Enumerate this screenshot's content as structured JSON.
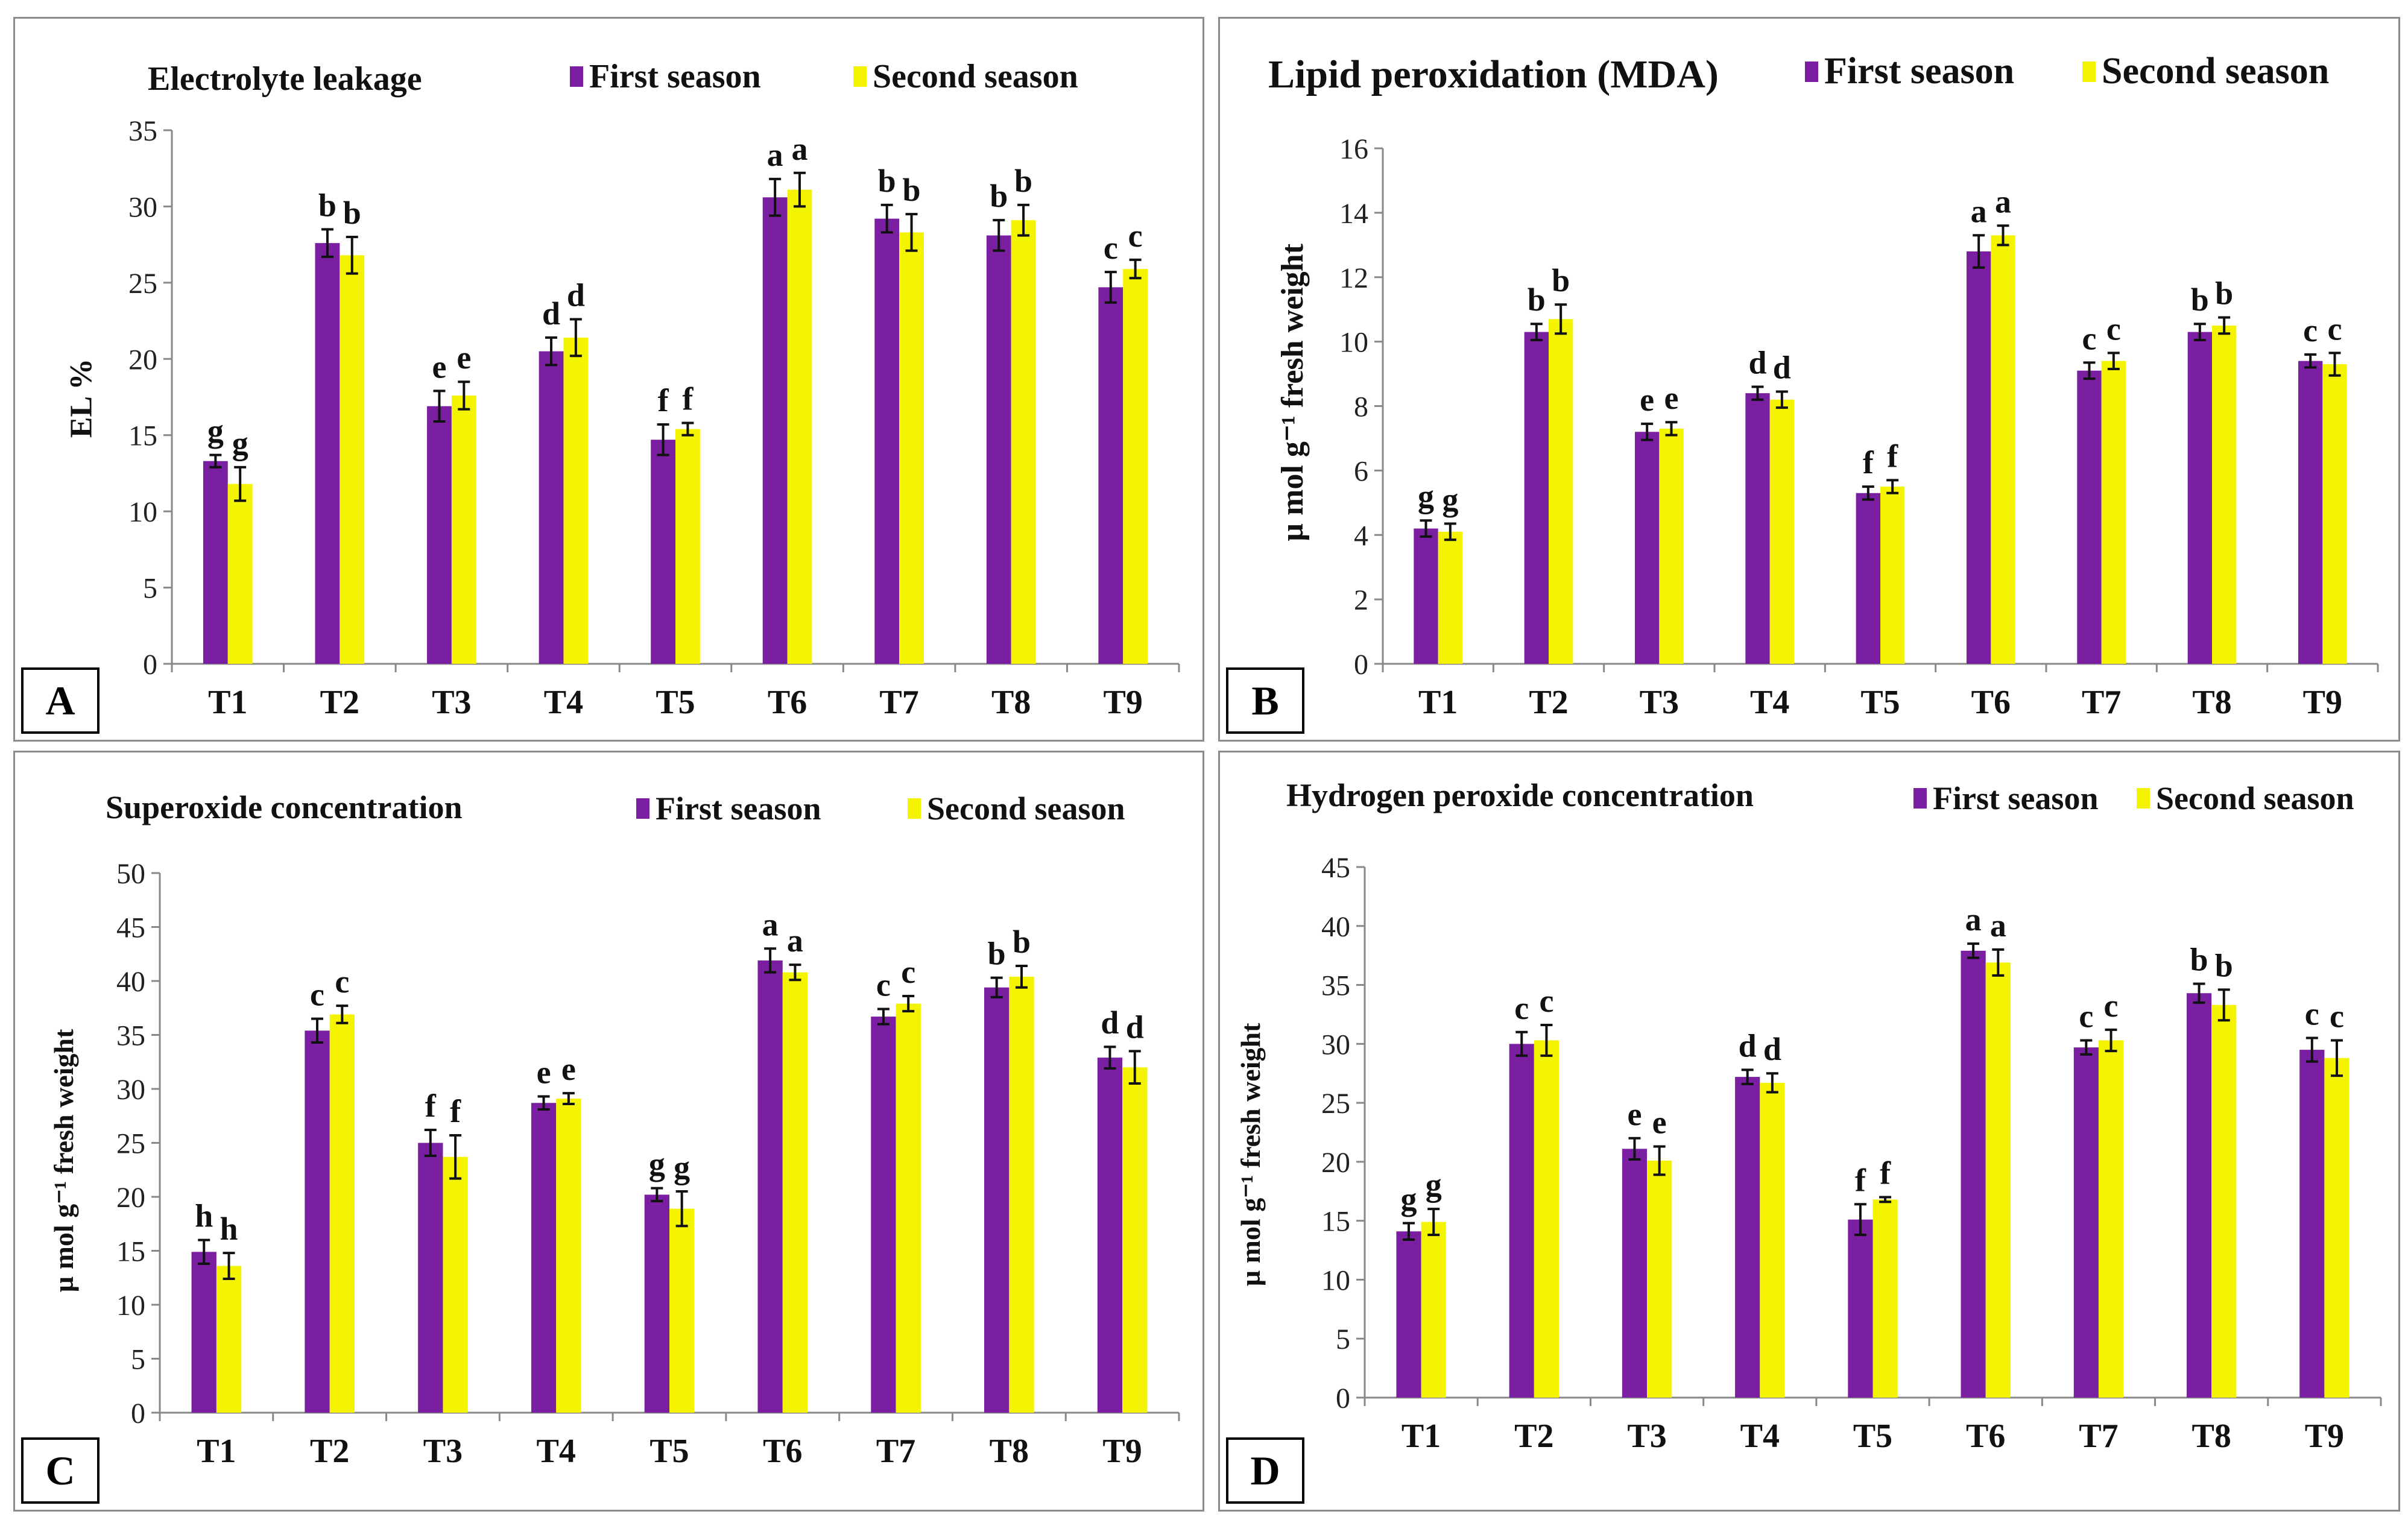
{
  "colors": {
    "first": "#7b1fa2",
    "second": "#f4f400",
    "axis": "#888888",
    "text": "#111111"
  },
  "legend": {
    "first": "First season",
    "second": "Second season"
  },
  "chart_data": [
    {
      "type": "bar",
      "panel": "A",
      "title": "Electrolyte leakage",
      "ylabel": "EL %",
      "xlabel": "",
      "categories": [
        "T1",
        "T2",
        "T3",
        "T4",
        "T5",
        "T6",
        "T7",
        "T8",
        "T9"
      ],
      "ylim": [
        0,
        35
      ],
      "yticks": [
        0,
        5,
        10,
        15,
        20,
        25,
        30,
        35
      ],
      "series": [
        {
          "name": "First season",
          "values": [
            13.3,
            27.6,
            16.9,
            20.5,
            14.7,
            30.6,
            29.2,
            28.1,
            24.7
          ],
          "errors": [
            0.4,
            0.9,
            1.0,
            0.9,
            1.0,
            1.2,
            0.9,
            1.0,
            1.0
          ],
          "letters": [
            "g",
            "b",
            "e",
            "d",
            "f",
            "a",
            "b",
            "b",
            "c"
          ]
        },
        {
          "name": "Second season",
          "values": [
            11.8,
            26.8,
            17.6,
            21.4,
            15.4,
            31.1,
            28.3,
            29.1,
            25.9
          ],
          "errors": [
            1.1,
            1.2,
            0.9,
            1.2,
            0.4,
            1.1,
            1.2,
            1.0,
            0.6
          ],
          "letters": [
            "g",
            "b",
            "e",
            "d",
            "f",
            "a",
            "b",
            "b",
            "c"
          ]
        }
      ]
    },
    {
      "type": "bar",
      "panel": "B",
      "title": "Lipid peroxidation (MDA)",
      "ylabel": "µ mol g⁻¹ fresh weight",
      "xlabel": "",
      "categories": [
        "T1",
        "T2",
        "T3",
        "T4",
        "T5",
        "T6",
        "T7",
        "T8",
        "T9"
      ],
      "ylim": [
        0,
        16
      ],
      "yticks": [
        0,
        2,
        4,
        6,
        8,
        10,
        12,
        14,
        16
      ],
      "series": [
        {
          "name": "First season",
          "values": [
            4.2,
            10.3,
            7.2,
            8.4,
            5.3,
            12.8,
            9.1,
            10.3,
            9.4
          ],
          "errors": [
            0.25,
            0.25,
            0.25,
            0.2,
            0.2,
            0.5,
            0.25,
            0.25,
            0.2
          ],
          "letters": [
            "g",
            "b",
            "e",
            "d",
            "f",
            "a",
            "c",
            "b",
            "c"
          ]
        },
        {
          "name": "Second season",
          "values": [
            4.1,
            10.7,
            7.3,
            8.2,
            5.5,
            13.3,
            9.4,
            10.5,
            9.3
          ],
          "errors": [
            0.25,
            0.45,
            0.2,
            0.25,
            0.2,
            0.3,
            0.25,
            0.25,
            0.35
          ],
          "letters": [
            "g",
            "b",
            "e",
            "d",
            "f",
            "a",
            "c",
            "b",
            "c"
          ]
        }
      ]
    },
    {
      "type": "bar",
      "panel": "C",
      "title": "Superoxide concentration",
      "ylabel": "µ mol g⁻¹ fresh weight",
      "xlabel": "",
      "categories": [
        "T1",
        "T2",
        "T3",
        "T4",
        "T5",
        "T6",
        "T7",
        "T8",
        "T9"
      ],
      "ylim": [
        0,
        50
      ],
      "yticks": [
        0,
        5,
        10,
        15,
        20,
        25,
        30,
        35,
        40,
        45,
        50
      ],
      "series": [
        {
          "name": "First season",
          "values": [
            14.9,
            35.4,
            25.0,
            28.7,
            20.2,
            41.9,
            36.7,
            39.4,
            32.9
          ],
          "errors": [
            1.1,
            1.1,
            1.2,
            0.6,
            0.6,
            1.1,
            0.7,
            0.9,
            1.0
          ],
          "letters": [
            "h",
            "c",
            "f",
            "e",
            "g",
            "a",
            "c",
            "b",
            "d"
          ]
        },
        {
          "name": "Second season",
          "values": [
            13.6,
            36.9,
            23.7,
            29.1,
            18.9,
            40.8,
            37.9,
            40.4,
            32.0
          ],
          "errors": [
            1.2,
            0.8,
            2.0,
            0.5,
            1.6,
            0.7,
            0.7,
            1.0,
            1.5
          ],
          "letters": [
            "h",
            "c",
            "f",
            "e",
            "g",
            "a",
            "c",
            "b",
            "d"
          ]
        }
      ]
    },
    {
      "type": "bar",
      "panel": "D",
      "title": "Hydrogen peroxide concentration",
      "ylabel": "µ mol g⁻¹ fresh weight",
      "xlabel": "",
      "categories": [
        "T1",
        "T2",
        "T3",
        "T4",
        "T5",
        "T6",
        "T7",
        "T8",
        "T9"
      ],
      "ylim": [
        0,
        45
      ],
      "yticks": [
        0,
        5,
        10,
        15,
        20,
        25,
        30,
        35,
        40,
        45
      ],
      "series": [
        {
          "name": "First season",
          "values": [
            14.1,
            30.0,
            21.1,
            27.2,
            15.1,
            37.9,
            29.7,
            34.3,
            29.5
          ],
          "errors": [
            0.7,
            1.0,
            0.9,
            0.6,
            1.3,
            0.6,
            0.6,
            0.8,
            1.0
          ],
          "letters": [
            "g",
            "c",
            "e",
            "d",
            "f",
            "a",
            "c",
            "b",
            "c"
          ]
        },
        {
          "name": "Second season",
          "values": [
            14.9,
            30.3,
            20.1,
            26.7,
            16.8,
            36.9,
            30.3,
            33.3,
            28.8
          ],
          "errors": [
            1.1,
            1.3,
            1.2,
            0.8,
            0.2,
            1.1,
            0.9,
            1.3,
            1.5
          ],
          "letters": [
            "g",
            "c",
            "e",
            "d",
            "f",
            "a",
            "c",
            "b",
            "c"
          ]
        }
      ]
    }
  ]
}
